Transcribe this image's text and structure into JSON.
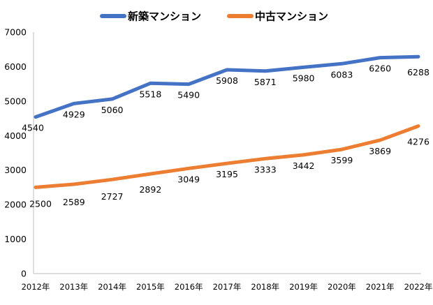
{
  "chart_data": {
    "type": "line",
    "title": "",
    "xlabel": "",
    "ylabel": "",
    "categories": [
      "2012年",
      "2013年",
      "2014年",
      "2015年",
      "2016年",
      "2017年",
      "2018年",
      "2019年",
      "2020年",
      "2021年",
      "2022年"
    ],
    "series": [
      {
        "name": "新築マンション",
        "color": "#4472C4",
        "values": [
          4540,
          4929,
          5060,
          5518,
          5490,
          5908,
          5871,
          5980,
          6083,
          6260,
          6288
        ]
      },
      {
        "name": "中古マンション",
        "color": "#ED7D31",
        "values": [
          2500,
          2589,
          2727,
          2892,
          3049,
          3195,
          3333,
          3442,
          3599,
          3869,
          4276
        ]
      }
    ],
    "ylim": [
      0,
      7000
    ],
    "yticks": [
      0,
      1000,
      2000,
      3000,
      4000,
      5000,
      6000,
      7000
    ],
    "grid": false,
    "legend": "top-center",
    "data_labels": true
  }
}
